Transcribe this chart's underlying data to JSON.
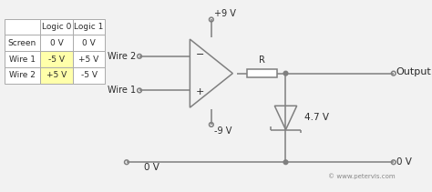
{
  "bg_color": "#f2f2f2",
  "line_color": "#7f7f7f",
  "text_color": "#2a2a2a",
  "table_headers": [
    "",
    "Logic 0",
    "Logic 1"
  ],
  "table_rows": [
    [
      "Screen",
      "0 V",
      "0 V"
    ],
    [
      "Wire 1",
      "-5 V",
      "+5 V"
    ],
    [
      "Wire 2",
      "+5 V",
      "-5 V"
    ]
  ],
  "table_highlight_rows": [
    2,
    3
  ],
  "table_highlight_col": 2,
  "highlight_color": "#ffffaa",
  "wire2_label": "Wire 2",
  "wire1_label": "Wire 1",
  "plus9v": "+9 V",
  "minus9v": "-9 V",
  "output_label": "Output",
  "r_label": "R",
  "voltage_47": "4.7 V",
  "zero_v": "0 V",
  "copyright": "© www.petervis.com"
}
